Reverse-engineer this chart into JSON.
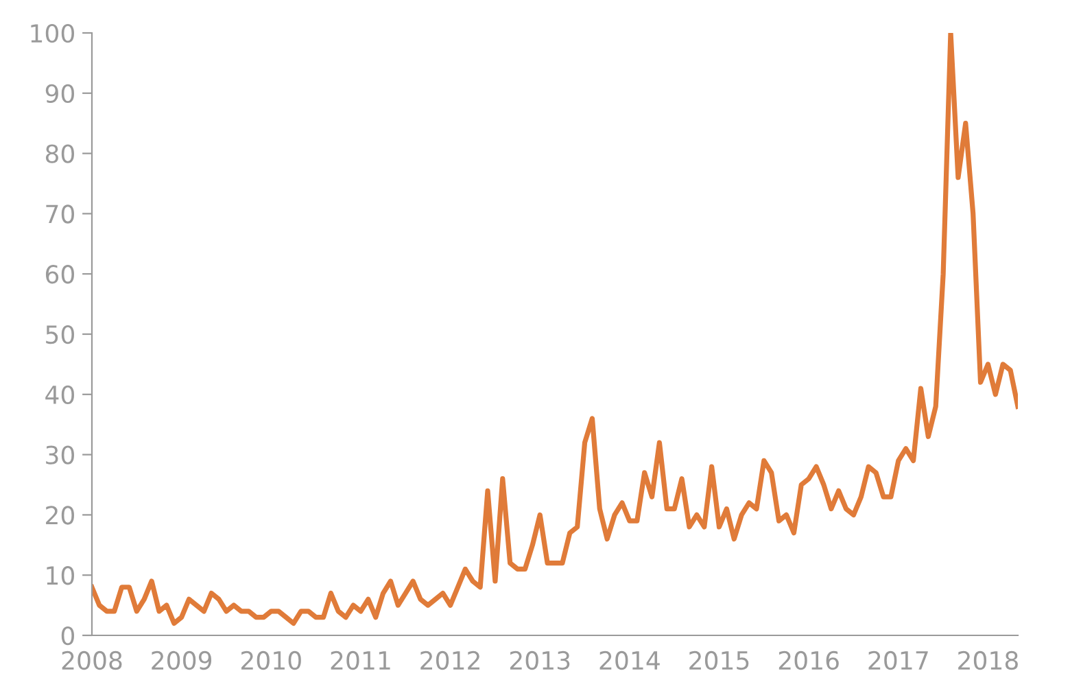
{
  "chart_data": {
    "type": "line",
    "categories": [
      "2008",
      null,
      null,
      null,
      null,
      null,
      null,
      null,
      null,
      null,
      null,
      null,
      "2009",
      null,
      null,
      null,
      null,
      null,
      null,
      null,
      null,
      null,
      null,
      null,
      "2010",
      null,
      null,
      null,
      null,
      null,
      null,
      null,
      null,
      null,
      null,
      null,
      "2011",
      null,
      null,
      null,
      null,
      null,
      null,
      null,
      null,
      null,
      null,
      null,
      "2012",
      null,
      null,
      null,
      null,
      null,
      null,
      null,
      null,
      null,
      null,
      null,
      "2013",
      null,
      null,
      null,
      null,
      null,
      null,
      null,
      null,
      null,
      null,
      null,
      "2014",
      null,
      null,
      null,
      null,
      null,
      null,
      null,
      null,
      null,
      null,
      null,
      "2015",
      null,
      null,
      null,
      null,
      null,
      null,
      null,
      null,
      null,
      null,
      null,
      "2016",
      null,
      null,
      null,
      null,
      null,
      null,
      null,
      null,
      null,
      null,
      null,
      "2017",
      null,
      null,
      null,
      null,
      null,
      null,
      null,
      null,
      null,
      null,
      null,
      "2018",
      null,
      null,
      null,
      null
    ],
    "series": [
      {
        "color": "#e07b39",
        "values": [
          8,
          5,
          4,
          4,
          8,
          8,
          4,
          6,
          9,
          4,
          5,
          2,
          3,
          6,
          5,
          4,
          7,
          6,
          4,
          5,
          4,
          4,
          3,
          3,
          4,
          4,
          3,
          2,
          4,
          4,
          3,
          3,
          7,
          4,
          3,
          5,
          4,
          6,
          3,
          7,
          9,
          5,
          7,
          9,
          6,
          5,
          6,
          7,
          5,
          8,
          11,
          9,
          8,
          24,
          9,
          26,
          12,
          11,
          11,
          15,
          20,
          12,
          12,
          12,
          17,
          18,
          32,
          36,
          21,
          16,
          20,
          22,
          19,
          19,
          27,
          23,
          32,
          21,
          21,
          26,
          18,
          20,
          18,
          28,
          18,
          21,
          16,
          20,
          22,
          21,
          29,
          27,
          19,
          20,
          17,
          25,
          26,
          28,
          25,
          21,
          24,
          21,
          20,
          23,
          28,
          27,
          23,
          23,
          29,
          31,
          29,
          41,
          33,
          38,
          60,
          100,
          76,
          85,
          70,
          42,
          45,
          40,
          45,
          44,
          38
        ]
      }
    ],
    "ylim": [
      0,
      100
    ],
    "yticks": [
      0,
      10,
      20,
      30,
      40,
      50,
      60,
      70,
      80,
      90,
      100
    ],
    "grid": false,
    "legend": false,
    "line_style": "solid",
    "marker": "none"
  }
}
